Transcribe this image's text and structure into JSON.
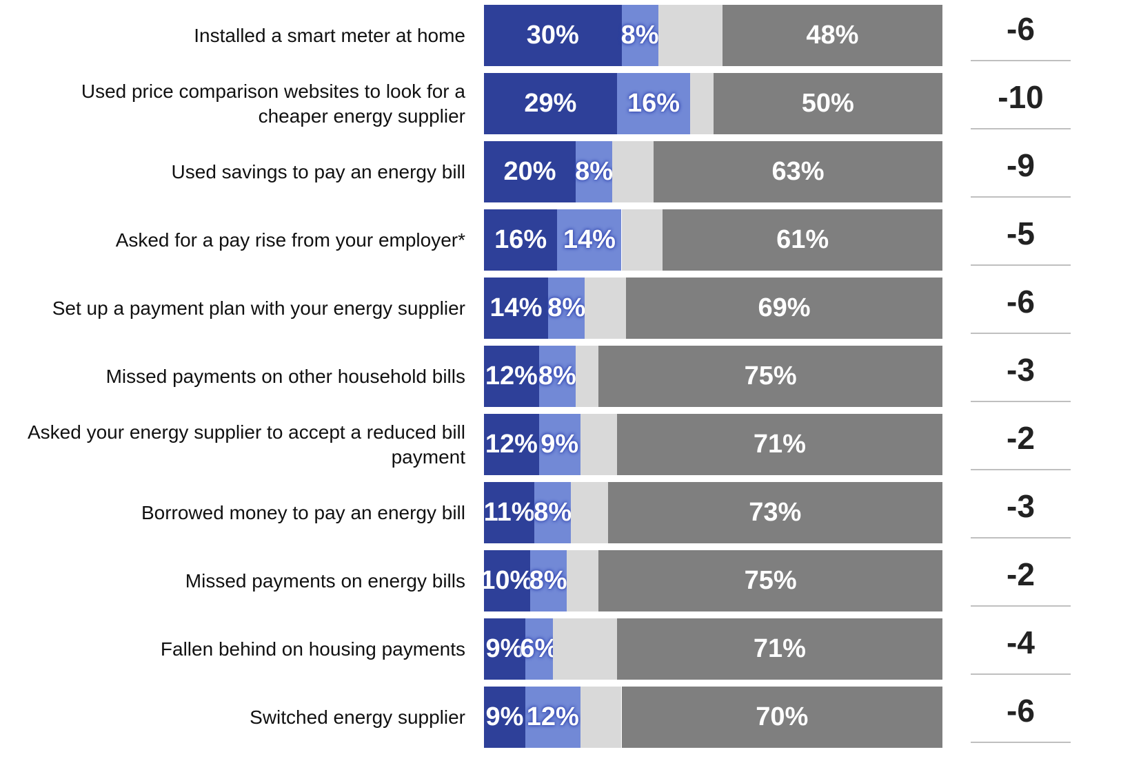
{
  "chart_data": {
    "type": "stacked_barh",
    "categories": [
      "Installed a smart meter at home",
      "Used price comparison websites to look for a cheaper energy supplier",
      "Used savings to pay an energy bill",
      "Asked for a pay rise from your employer*",
      "Set up a payment plan with your energy supplier",
      "Missed payments on other household bills",
      "Asked your energy supplier to accept a reduced bill payment",
      "Borrowed money to pay an energy bill",
      "Missed payments on energy bills",
      "Fallen behind on housing payments",
      "Switched energy supplier"
    ],
    "xlim": [
      0,
      100
    ],
    "series": [
      {
        "color": "#2e4099",
        "values": [
          30,
          29,
          20,
          16,
          14,
          12,
          12,
          11,
          10,
          9,
          9
        ],
        "value_labels": [
          "30%",
          "29%",
          "20%",
          "16%",
          "14%",
          "12%",
          "12%",
          "11%",
          "10%",
          "9%",
          "9%"
        ]
      },
      {
        "color": "#7289d6",
        "values": [
          8,
          16,
          8,
          14,
          8,
          8,
          9,
          8,
          8,
          6,
          12
        ],
        "value_labels": [
          "8%",
          "16%",
          "8%",
          "14%",
          "8%",
          "8%",
          "9%",
          "8%",
          "8%",
          "6%",
          "12%"
        ]
      },
      {
        "color": "#d9d9d9",
        "values": [
          14,
          5,
          9,
          9,
          9,
          5,
          8,
          8,
          7,
          14,
          9
        ]
      },
      {
        "color": "#7f7f7f",
        "values": [
          48,
          50,
          63,
          61,
          69,
          75,
          71,
          73,
          75,
          71,
          70
        ],
        "value_labels": [
          "48%",
          "50%",
          "63%",
          "61%",
          "69%",
          "75%",
          "71%",
          "73%",
          "75%",
          "71%",
          "70%"
        ]
      }
    ],
    "net_values": [
      -6,
      -10,
      -9,
      -5,
      -6,
      -3,
      -2,
      -3,
      -2,
      -4,
      -6
    ]
  }
}
